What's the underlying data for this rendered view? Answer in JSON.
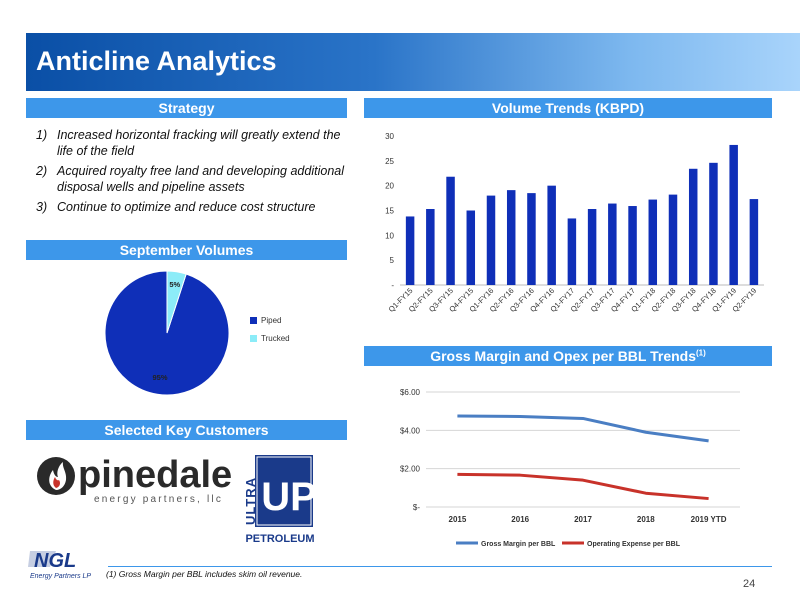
{
  "title": "Anticline Analytics",
  "sections": {
    "strategy": "Strategy",
    "volume_trends": "Volume Trends (KBPD)",
    "september_volumes": "September Volumes",
    "gross_margin": "Gross Margin and Opex per BBL Trends",
    "gross_margin_note": "(1)",
    "key_customers": "Selected Key Customers"
  },
  "strategy_items": [
    {
      "num": "1)",
      "text": "Increased horizontal fracking will greatly extend the life of the field"
    },
    {
      "num": "2)",
      "text": "Acquired royalty free land and developing additional disposal wells and pipeline assets"
    },
    {
      "num": "3)",
      "text": "Continue to optimize and reduce cost structure"
    }
  ],
  "logos": {
    "pinedale_name": "pinedale",
    "pinedale_sub": "energy partners, llc",
    "ultra_side": "ULTRA",
    "ultra_mark": "UP",
    "ultra_bottom": "PETROLEUM",
    "ngl_mark": "NGL",
    "ngl_sub": "Energy Partners LP"
  },
  "footnote": "(1)   Gross Margin per BBL includes skim oil revenue.",
  "page_number": "24",
  "colors": {
    "bar": "#0f2fb8",
    "pie_piped": "#0f2fb8",
    "pie_trucked": "#8cecf8",
    "gross_margin_line": "#4a7ec3",
    "opex_line": "#c8322a",
    "header": "#3d97ea"
  },
  "chart_data": [
    {
      "type": "bar",
      "categories": [
        "Q1-FY15",
        "Q2-FY15",
        "Q3-FY15",
        "Q4-FY15",
        "Q1-FY16",
        "Q2-FY16",
        "Q3-FY16",
        "Q4-FY16",
        "Q1-FY17",
        "Q2-FY17",
        "Q3-FY17",
        "Q4-FY17",
        "Q1-FY18",
        "Q2-FY18",
        "Q3-FY18",
        "Q4-FY18",
        "Q1-FY19",
        "Q2-FY19"
      ],
      "values": [
        13.8,
        15.3,
        21.8,
        15.0,
        18.0,
        19.1,
        18.5,
        20.0,
        13.4,
        15.3,
        16.4,
        15.9,
        17.2,
        18.2,
        23.4,
        24.6,
        28.2,
        17.3
      ],
      "ylim": [
        0,
        30
      ],
      "yticks": [
        {
          "v": 0,
          "label": "-"
        },
        {
          "v": 5,
          "label": "5"
        },
        {
          "v": 10,
          "label": "10"
        },
        {
          "v": 15,
          "label": "15"
        },
        {
          "v": 20,
          "label": "20"
        },
        {
          "v": 25,
          "label": "25"
        },
        {
          "v": 30,
          "label": "30"
        }
      ],
      "grid": false
    },
    {
      "type": "pie",
      "slices": [
        {
          "name": "Piped",
          "value": 95,
          "label": "95%"
        },
        {
          "name": "Trucked",
          "value": 5,
          "label": "5%"
        }
      ],
      "legend": "right"
    },
    {
      "type": "line",
      "categories": [
        "2015",
        "2016",
        "2017",
        "2018",
        "2019 YTD"
      ],
      "series": [
        {
          "name": "Gross Margin per BBL",
          "values": [
            4.75,
            4.72,
            4.62,
            3.9,
            3.45
          ]
        },
        {
          "name": "Operating Expense per BBL",
          "values": [
            1.7,
            1.66,
            1.4,
            0.72,
            0.44
          ]
        }
      ],
      "ylim": [
        0,
        6
      ],
      "yticks": [
        {
          "v": 0,
          "label": "$-"
        },
        {
          "v": 2,
          "label": "$2.00"
        },
        {
          "v": 4,
          "label": "$4.00"
        },
        {
          "v": 6,
          "label": "$6.00"
        }
      ],
      "grid": true,
      "legend": "bottom"
    }
  ]
}
